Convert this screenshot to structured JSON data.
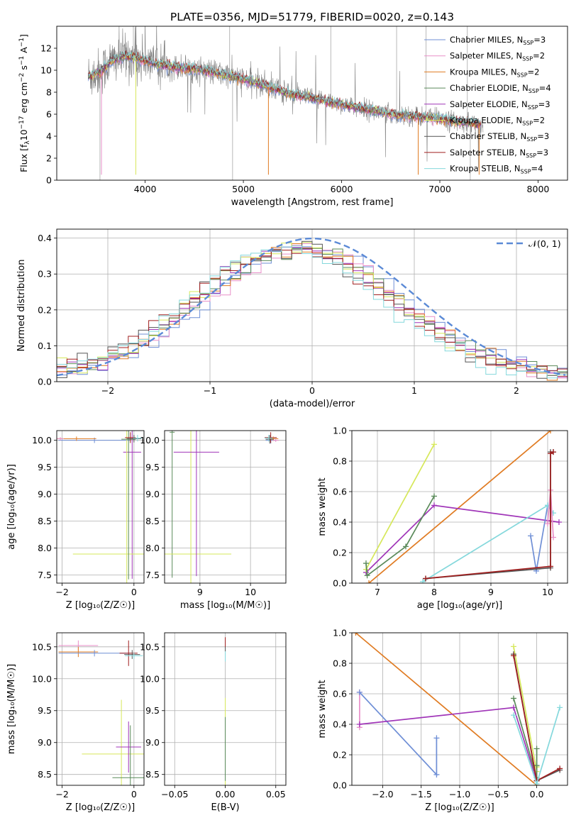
{
  "figure": {
    "title": "PLATE=0356, MJD=51779, FIBERID=0020, z=0.143"
  },
  "colors": {
    "chabrier_miles": "#6f8fd6",
    "salpeter_miles": "#e88fc8",
    "kroupa_miles": "#e07b22",
    "chabrier_elodie": "#5a8a5a",
    "salpeter_elodie": "#a035b8",
    "kroupa_elodie": "#d6e85a",
    "chabrier_stelib": "#555555",
    "salpeter_stelib": "#a01f1f",
    "kroupa_stelib": "#84d8dc",
    "data": "#808080",
    "normal": "#5b8ad6"
  },
  "legend": [
    {
      "name": "Chabrier MILES, N",
      "sub": "SSP",
      "val": "=3",
      "key": "chabrier_miles"
    },
    {
      "name": "Salpeter MILES, N",
      "sub": "SSP",
      "val": "=2",
      "key": "salpeter_miles"
    },
    {
      "name": "Kroupa MILES, N",
      "sub": "SSP",
      "val": "=2",
      "key": "kroupa_miles"
    },
    {
      "name": "Chabrier ELODIE, N",
      "sub": "SSP",
      "val": "=4",
      "key": "chabrier_elodie"
    },
    {
      "name": "Salpeter ELODIE, N",
      "sub": "SSP",
      "val": "=3",
      "key": "salpeter_elodie"
    },
    {
      "name": "Kroupa ELODIE, N",
      "sub": "SSP",
      "val": "=2",
      "key": "kroupa_elodie"
    },
    {
      "name": "Chabrier STELIB, N",
      "sub": "SSP",
      "val": "=3",
      "key": "chabrier_stelib"
    },
    {
      "name": "Salpeter STELIB, N",
      "sub": "SSP",
      "val": "=3",
      "key": "salpeter_stelib"
    },
    {
      "name": "Kroupa STELIB, N",
      "sub": "SSP",
      "val": "=4",
      "key": "kroupa_stelib"
    }
  ],
  "chart_data": [
    {
      "id": "spectrum",
      "type": "line",
      "xlabel": "wavelength [Angstrom, rest frame]",
      "ylabel_pre": "Flux [f",
      "ylabel_sub": "λ",
      "ylabel_mid": "10",
      "ylabel_sup1": "−17",
      "ylabel_post": " erg cm",
      "ylabel_sup2": "−2",
      "ylabel_s": " s",
      "ylabel_sup3": "−1",
      "ylabel_end": " A",
      "ylabel_sup4": "−1",
      "ylabel_close": "]",
      "xlim": [
        3100,
        8300
      ],
      "ylim": [
        0,
        14
      ],
      "xticks": [
        4000,
        5000,
        6000,
        7000,
        8000
      ],
      "xtick_labels": [
        "4000",
        "5000",
        "6000",
        "7000",
        "8000"
      ],
      "yticks": [
        0,
        2,
        4,
        6,
        8,
        10,
        12
      ],
      "ytick_labels": [
        "0",
        "2",
        "4",
        "6",
        "8",
        "10",
        "12"
      ],
      "model_anchor_x": [
        3450,
        3550,
        3650,
        3800,
        3950,
        4100,
        4300,
        4600,
        5000,
        5500,
        6000,
        6500,
        7000,
        7200,
        7420
      ],
      "model_anchor_y": [
        9.5,
        9.9,
        10.8,
        11.3,
        11.0,
        10.6,
        10.3,
        10.0,
        9.2,
        7.8,
        6.9,
        6.0,
        5.6,
        5.3,
        5.1
      ],
      "legend_loc": "upper right",
      "grid": false
    },
    {
      "id": "residual_hist",
      "type": "line",
      "xlabel": "(data-model)/error",
      "ylabel": "Normed distribution",
      "xlim": [
        -2.5,
        2.5
      ],
      "ylim": [
        0,
        0.425
      ],
      "xticks": [
        -2,
        -1,
        0,
        1,
        2
      ],
      "xtick_labels": [
        "−2",
        "−1",
        "0",
        "1",
        "2"
      ],
      "yticks": [
        0,
        0.1,
        0.2,
        0.3,
        0.4
      ],
      "ytick_labels": [
        "0.0",
        "0.1",
        "0.2",
        "0.3",
        "0.4"
      ],
      "bin_width": 0.1,
      "normal_label": "𝒩(0, 1)",
      "legend_loc": "upper right",
      "grid": true
    },
    {
      "id": "z_age",
      "type": "scatter",
      "xlabel": "Z [log₁₀(Z/Z☉)]",
      "ylabel": "age  [log₁₀(age/yr)]",
      "xlim": [
        -2.15,
        0.28
      ],
      "ylim": [
        7.35,
        10.18
      ],
      "xticks": [
        -2,
        0
      ],
      "xtick_labels": [
        "−2",
        "0"
      ],
      "yticks": [
        7.5,
        8.0,
        8.5,
        9.0,
        9.5,
        10.0
      ],
      "ytick_labels": [
        "7.5",
        "8.0",
        "8.5",
        "9.0",
        "9.5",
        "10.0"
      ],
      "grid": true,
      "points": [
        {
          "key": "chabrier_miles",
          "x": -1.1,
          "y": 10.0,
          "xerr": 1.0,
          "yerr": 0.05
        },
        {
          "key": "kroupa_miles",
          "x": -1.6,
          "y": 10.03,
          "xerr": 0.55,
          "yerr": 0.04
        },
        {
          "key": "salpeter_miles",
          "x": -2.05,
          "y": 10.03,
          "xerr": 0.1,
          "yerr": 0.03
        },
        {
          "key": "salpeter_elodie",
          "x": -0.05,
          "y": 9.78,
          "xerr": 0.25,
          "yerr": 2.35
        },
        {
          "key": "kroupa_elodie",
          "x": -0.2,
          "y": 7.89,
          "xerr": 1.5,
          "yerr": 2.3
        },
        {
          "key": "chabrier_elodie",
          "x": -0.15,
          "y": 10.02,
          "xerr": 0.2,
          "yerr": 2.6
        },
        {
          "key": "salpeter_stelib",
          "x": -0.1,
          "y": 10.05,
          "xerr": 0.15,
          "yerr": 0.1
        },
        {
          "key": "chabrier_stelib",
          "x": 0.0,
          "y": 10.03,
          "xerr": 0.2,
          "yerr": 0.07
        },
        {
          "key": "kroupa_stelib",
          "x": 0.1,
          "y": 10.04,
          "xerr": 0.12,
          "yerr": 0.06
        }
      ]
    },
    {
      "id": "mass_age",
      "type": "scatter",
      "xlabel": "mass [log₁₀(M/M☉)]",
      "ylabel": "",
      "xlim": [
        8.3,
        10.7
      ],
      "ylim": [
        7.35,
        10.18
      ],
      "xticks": [
        9,
        10
      ],
      "xtick_labels": [
        "9",
        "10"
      ],
      "yticks": [
        7.5,
        8.0,
        8.5,
        9.0,
        9.5,
        10.0
      ],
      "ytick_labels": [
        "7.5",
        "8.0",
        "8.5",
        "9.0",
        "9.5",
        "10.0"
      ],
      "grid": true,
      "points": [
        {
          "key": "chabrier_elodie",
          "x": 8.45,
          "y": 10.15,
          "xerr": 0.05,
          "yerr": 2.7
        },
        {
          "key": "kroupa_elodie",
          "x": 8.82,
          "y": 7.89,
          "xerr": 0.8,
          "yerr": 2.3
        },
        {
          "key": "salpeter_elodie",
          "x": 8.93,
          "y": 9.78,
          "xerr": 0.45,
          "yerr": 2.3
        },
        {
          "key": "chabrier_miles",
          "x": 10.4,
          "y": 10.0,
          "xerr": 0.1,
          "yerr": 0.06
        },
        {
          "key": "salpeter_stelib",
          "x": 10.4,
          "y": 10.05,
          "xerr": 0.12,
          "yerr": 0.1
        },
        {
          "key": "kroupa_miles",
          "x": 10.45,
          "y": 10.03,
          "xerr": 0.1,
          "yerr": 0.04
        },
        {
          "key": "chabrier_stelib",
          "x": 10.38,
          "y": 10.02,
          "xerr": 0.08,
          "yerr": 0.08
        },
        {
          "key": "kroupa_stelib",
          "x": 10.36,
          "y": 10.04,
          "xerr": 0.08,
          "yerr": 0.06
        },
        {
          "key": "salpeter_miles",
          "x": 10.5,
          "y": 10.0,
          "xerr": 0.06,
          "yerr": 0.03
        }
      ]
    },
    {
      "id": "age_weight",
      "type": "line",
      "xlabel": "age  [log₁₀(age/yr)]",
      "ylabel": "mass weight",
      "xlim": [
        6.55,
        10.35
      ],
      "ylim": [
        0,
        1.0
      ],
      "xticks": [
        7,
        8,
        9,
        10
      ],
      "xtick_labels": [
        "7",
        "8",
        "9",
        "10"
      ],
      "yticks": [
        0,
        0.2,
        0.4,
        0.6,
        0.8,
        1.0
      ],
      "ytick_labels": [
        "0.0",
        "0.2",
        "0.4",
        "0.6",
        "0.8",
        "1.0"
      ],
      "grid": true,
      "series": [
        {
          "key": "kroupa_miles",
          "x": [
            6.85,
            10.05
          ],
          "y": [
            0.0,
            1.0
          ]
        },
        {
          "key": "salpeter_elodie",
          "x": [
            6.8,
            8.0,
            10.2
          ],
          "y": [
            0.07,
            0.51,
            0.4
          ]
        },
        {
          "key": "kroupa_elodie",
          "x": [
            6.8,
            8.0
          ],
          "y": [
            0.09,
            0.91
          ]
        },
        {
          "key": "chabrier_elodie",
          "x": [
            6.8,
            6.82,
            7.5,
            8.0
          ],
          "y": [
            0.13,
            0.05,
            0.24,
            0.57
          ]
        },
        {
          "key": "chabrier_miles",
          "x": [
            9.7,
            9.8,
            10.0
          ],
          "y": [
            0.31,
            0.08,
            0.51
          ]
        },
        {
          "key": "kroupa_stelib",
          "x": [
            7.8,
            10.0,
            10.1
          ],
          "y": [
            0.01,
            0.51,
            0.46
          ]
        },
        {
          "key": "salpeter_miles",
          "x": [
            10.0,
            10.05,
            10.1
          ],
          "y": [
            0.39,
            0.61,
            0.3
          ]
        },
        {
          "key": "chabrier_stelib",
          "x": [
            7.85,
            10.05,
            10.05,
            10.1
          ],
          "y": [
            0.03,
            0.1,
            0.86,
            0.86
          ]
        },
        {
          "key": "salpeter_stelib",
          "x": [
            7.85,
            10.05,
            10.05,
            10.1
          ],
          "y": [
            0.03,
            0.11,
            0.85,
            0.86
          ]
        }
      ]
    },
    {
      "id": "z_mass",
      "type": "scatter",
      "xlabel": "Z [log₁₀(Z/Z☉)]",
      "ylabel": "mass [log₁₀(M/M☉)]",
      "xlim": [
        -2.15,
        0.28
      ],
      "ylim": [
        8.33,
        10.72
      ],
      "xticks": [
        -2,
        0
      ],
      "xtick_labels": [
        "−2",
        "0"
      ],
      "yticks": [
        8.5,
        9.0,
        9.5,
        10.0,
        10.5
      ],
      "ytick_labels": [
        "8.5",
        "9.0",
        "9.5",
        "10.0",
        "10.5"
      ],
      "grid": true,
      "points": [
        {
          "key": "salpeter_miles",
          "x": -1.55,
          "y": 10.52,
          "xerr": 0.55,
          "yerr": 0.08
        },
        {
          "key": "kroupa_miles",
          "x": -1.55,
          "y": 10.42,
          "xerr": 0.55,
          "yerr": 0.08
        },
        {
          "key": "chabrier_miles",
          "x": -1.1,
          "y": 10.4,
          "xerr": 1.0,
          "yerr": 0.05
        },
        {
          "key": "salpeter_stelib",
          "x": -0.15,
          "y": 10.4,
          "xerr": 0.25,
          "yerr": 0.2
        },
        {
          "key": "chabrier_stelib",
          "x": -0.05,
          "y": 10.38,
          "xerr": 0.22,
          "yerr": 0.07
        },
        {
          "key": "kroupa_stelib",
          "x": 0.0,
          "y": 10.36,
          "xerr": 0.25,
          "yerr": 0.05
        },
        {
          "key": "kroupa_elodie",
          "x": -0.35,
          "y": 8.82,
          "xerr": 1.1,
          "yerr": 0.85
        },
        {
          "key": "salpeter_elodie",
          "x": -0.15,
          "y": 8.93,
          "xerr": 0.35,
          "yerr": 0.4
        },
        {
          "key": "chabrier_elodie",
          "x": -0.1,
          "y": 8.45,
          "xerr": 0.5,
          "yerr": 0.82
        }
      ]
    },
    {
      "id": "ebv_mass",
      "type": "scatter",
      "xlabel": "E(B-V)",
      "ylabel": "",
      "xlim": [
        -0.06,
        0.06
      ],
      "ylim": [
        8.33,
        10.72
      ],
      "xticks": [
        -0.05,
        0.0,
        0.05
      ],
      "xtick_labels": [
        "−0.05",
        "0.00",
        "0.05"
      ],
      "yticks": [
        8.5,
        9.0,
        9.5,
        10.0,
        10.5
      ],
      "ytick_labels": [
        "8.5",
        "9.0",
        "9.5",
        "10.0",
        "10.5"
      ],
      "grid": true,
      "points": [
        {
          "key": "salpeter_stelib",
          "x": 0.0,
          "y": 10.5,
          "xerr": 0.0,
          "yerr": 0.15
        },
        {
          "key": "chabrier_stelib",
          "x": 0.0,
          "y": 10.4,
          "xerr": 0.0,
          "yerr": 0.1
        },
        {
          "key": "kroupa_stelib",
          "x": 0.0,
          "y": 10.35,
          "xerr": 0.0,
          "yerr": 0.08
        },
        {
          "key": "kroupa_elodie",
          "x": 0.0,
          "y": 9.0,
          "xerr": 0.0,
          "yerr": 0.7
        },
        {
          "key": "chabrier_elodie",
          "x": 0.0,
          "y": 8.9,
          "xerr": 0.0,
          "yerr": 0.5
        }
      ]
    },
    {
      "id": "z_weight",
      "type": "line",
      "xlabel": "Z [log₁₀(Z/Z☉)]",
      "ylabel": "mass weight",
      "xlim": [
        -2.4,
        0.4
      ],
      "ylim": [
        0,
        1.0
      ],
      "xticks": [
        -2.0,
        -1.5,
        -1.0,
        -0.5,
        0.0
      ],
      "xtick_labels": [
        "−2.0",
        "−1.5",
        "−1.0",
        "−0.5",
        "0.0"
      ],
      "yticks": [
        0,
        0.2,
        0.4,
        0.6,
        0.8,
        1.0
      ],
      "ytick_labels": [
        "0.0",
        "0.2",
        "0.4",
        "0.6",
        "0.8",
        "1.0"
      ],
      "grid": true,
      "series": [
        {
          "key": "kroupa_miles",
          "x": [
            -2.35,
            0.0
          ],
          "y": [
            1.0,
            0.0
          ]
        },
        {
          "key": "salpeter_miles",
          "x": [
            -2.3,
            -2.3,
            -2.3
          ],
          "y": [
            0.61,
            0.38,
            0.61
          ]
        },
        {
          "key": "chabrier_miles",
          "x": [
            -2.3,
            -1.3,
            -1.3
          ],
          "y": [
            0.61,
            0.07,
            0.31
          ]
        },
        {
          "key": "salpeter_elodie",
          "x": [
            -2.3,
            -0.3,
            0.0
          ],
          "y": [
            0.4,
            0.51,
            0.03
          ]
        },
        {
          "key": "kroupa_elodie",
          "x": [
            -0.3,
            0.0,
            0.0
          ],
          "y": [
            0.91,
            0.09,
            0.12
          ]
        },
        {
          "key": "chabrier_elodie",
          "x": [
            -0.3,
            0.0,
            0.0,
            0.0
          ],
          "y": [
            0.57,
            0.05,
            0.24,
            0.13
          ]
        },
        {
          "key": "chabrier_stelib",
          "x": [
            -0.3,
            0.0,
            0.3
          ],
          "y": [
            0.86,
            0.03,
            0.1
          ]
        },
        {
          "key": "salpeter_stelib",
          "x": [
            -0.3,
            0.0,
            0.3
          ],
          "y": [
            0.85,
            0.03,
            0.11
          ]
        },
        {
          "key": "kroupa_stelib",
          "x": [
            -0.3,
            0.0,
            0.3
          ],
          "y": [
            0.46,
            0.01,
            0.51
          ]
        }
      ]
    }
  ]
}
